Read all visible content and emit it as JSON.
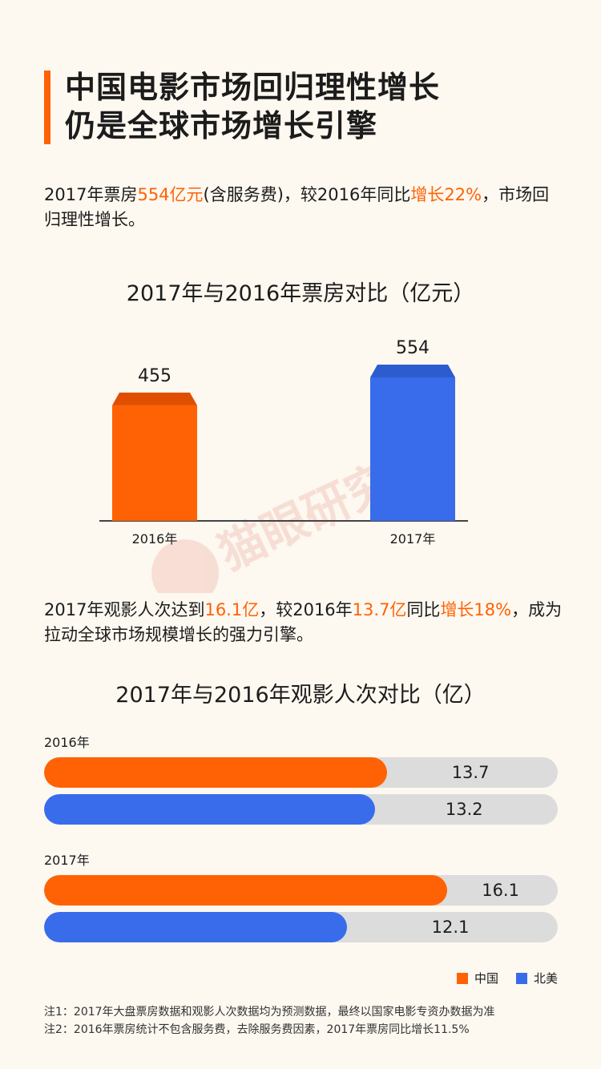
{
  "header": {
    "title_line1": "中国电影市场回归理性增长",
    "title_line2": "仍是全球市场增长引擎"
  },
  "intro1": {
    "p1": "2017年票房",
    "h1": "554亿元",
    "p2": "(含服务费)，较2016年同比",
    "h2": "增长22%",
    "p3": "，市场回归理性增长。"
  },
  "intro2": {
    "p1": "2017年观影人次达到",
    "h1": "16.1亿",
    "p2": "，较2016年",
    "h2": "13.7亿",
    "p3": "同比",
    "h3": "增长18%",
    "p4": "，成为拉动全球市场规模增长的强力引擎。"
  },
  "watermark_text": "猫眼研究院",
  "colors": {
    "orange": "#ff6205",
    "orange_top": "#e04f00",
    "blue": "#386ceb",
    "blue_top": "#2d5cd0",
    "track": "#dcdcdc"
  },
  "chart_data": [
    {
      "type": "bar",
      "title": "2017年与2016年票房对比（亿元）",
      "categories": [
        "2016年",
        "2017年"
      ],
      "values": [
        455,
        554
      ],
      "ylim": [
        0,
        554
      ]
    },
    {
      "type": "bar",
      "orientation": "horizontal",
      "title": "2017年与2016年观影人次对比（亿）",
      "groups": [
        "2016年",
        "2017年"
      ],
      "series": [
        {
          "name": "中国",
          "values": [
            13.7,
            16.1
          ]
        },
        {
          "name": "北美",
          "values": [
            13.2,
            12.1
          ]
        }
      ],
      "xlim": [
        0,
        20.5
      ],
      "legend": "bottom-right"
    }
  ],
  "notes": {
    "note1": "注1：2017年大盘票房数据和观影人次数据均为预测数据，最终以国家电影专资办数据为准",
    "note2": "注2：2016年票房统计不包含服务费，去除服务费因素，2017年票房同比增长11.5%"
  }
}
